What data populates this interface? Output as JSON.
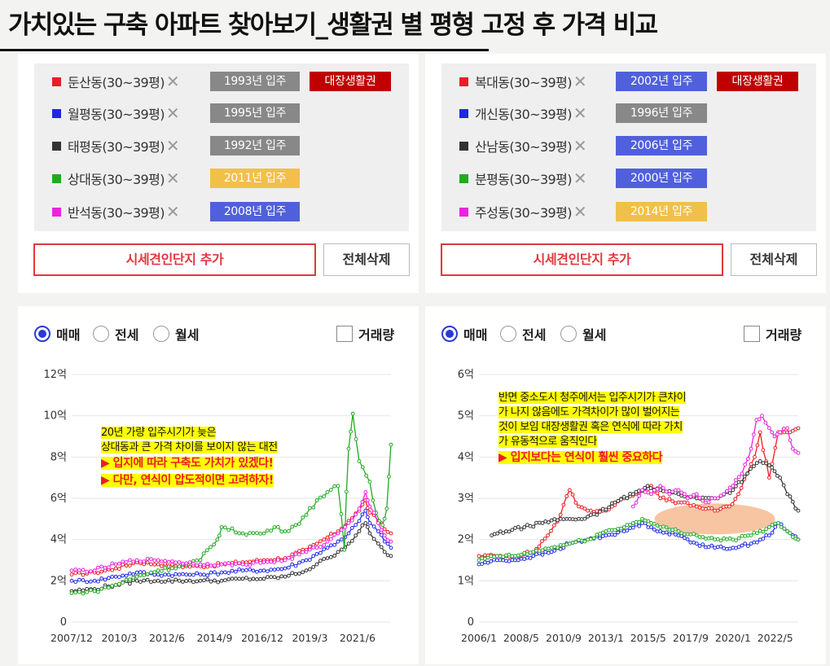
{
  "page_title": "가치있는 구축 아파트 찾아보기_생활권 별 평형 고정 후 가격 비교",
  "colors": {
    "red": "#ee1c24",
    "blue": "#1e28e6",
    "black": "#333333",
    "green": "#22aa22",
    "magenta": "#ee22dd",
    "badge_gray": "#888888",
    "badge_blue": "#5060dc",
    "badge_yellow": "#f2c04a",
    "badge_dark_red": "#c00000"
  },
  "panels": [
    {
      "legend": [
        {
          "label": "둔산동(30~39평)",
          "color": "#ee1c24",
          "badge": "1993년 입주",
          "badge_color": "#888888",
          "extra": "대장생활권"
        },
        {
          "label": "월평동(30~39평)",
          "color": "#1e28e6",
          "badge": "1995년 입주",
          "badge_color": "#888888"
        },
        {
          "label": "태평동(30~39평)",
          "color": "#333333",
          "badge": "1992년 입주",
          "badge_color": "#888888"
        },
        {
          "label": "상대동(30~39평)",
          "color": "#22aa22",
          "badge": "2011년 입주",
          "badge_color": "#f2c04a"
        },
        {
          "label": "반석동(30~39평)",
          "color": "#ee22dd",
          "badge": "2008년 입주",
          "badge_color": "#5060dc"
        }
      ],
      "add_button": "시세견인단지 추가",
      "delete_button": "전체삭제",
      "radios": [
        "매매",
        "전세",
        "월세"
      ],
      "checkbox": "거래량",
      "annotation": {
        "lines": [
          "20년 가량 입주시기가 늦은",
          "상대동과 큰 가격 차이를 보이지 않는 대전"
        ],
        "red_lines": [
          "▶ 입지에 따라 구축도 가치가 있겠다!",
          "▶ 다만, 연식이 압도적이면 고려하자!"
        ]
      }
    },
    {
      "legend": [
        {
          "label": "복대동(30~39평)",
          "color": "#ee1c24",
          "badge": "2002년 입주",
          "badge_color": "#5060dc",
          "extra": "대장생활권"
        },
        {
          "label": "개신동(30~39평)",
          "color": "#1e28e6",
          "badge": "1996년 입주",
          "badge_color": "#888888"
        },
        {
          "label": "산남동(30~39평)",
          "color": "#333333",
          "badge": "2006년 입주",
          "badge_color": "#5060dc"
        },
        {
          "label": "분평동(30~39평)",
          "color": "#22aa22",
          "badge": "2000년 입주",
          "badge_color": "#5060dc"
        },
        {
          "label": "주성동(30~39평)",
          "color": "#ee22dd",
          "badge": "2014년 입주",
          "badge_color": "#f2c04a"
        }
      ],
      "add_button": "시세견인단지 추가",
      "delete_button": "전체삭제",
      "radios": [
        "매매",
        "전세",
        "월세"
      ],
      "checkbox": "거래량",
      "annotation": {
        "lines": [
          "반면 중소도시 청주에서는 입주시기가 큰차이",
          "가 나지 않음에도 가격차이가 많이 벌어지는",
          "것이 보임 대장생활권 혹은 연식에 따라 가치",
          "가 유동적으로 움직인다"
        ],
        "red_lines": [
          "▶ 입지보다는 연식이 훨씬 중요하다"
        ]
      }
    }
  ],
  "chart_data": [
    {
      "type": "line",
      "x_range": [
        2007.92,
        2023.0
      ],
      "x_ticks": [
        {
          "x": 2007.92,
          "label": "2007/12"
        },
        {
          "x": 2010.17,
          "label": "2010/3"
        },
        {
          "x": 2012.42,
          "label": "2012/6"
        },
        {
          "x": 2014.67,
          "label": "2014/9"
        },
        {
          "x": 2016.92,
          "label": "2016/12"
        },
        {
          "x": 2019.17,
          "label": "2019/3"
        },
        {
          "x": 2021.42,
          "label": "2021/6"
        }
      ],
      "y_range": [
        0,
        12
      ],
      "y_ticks": [
        {
          "v": 0,
          "label": "0"
        },
        {
          "v": 2,
          "label": "2억"
        },
        {
          "v": 4,
          "label": "4억"
        },
        {
          "v": 6,
          "label": "6억"
        },
        {
          "v": 8,
          "label": "8억"
        },
        {
          "v": 10,
          "label": "10억"
        },
        {
          "v": 12,
          "label": "12억"
        }
      ],
      "series": [
        {
          "name": "둔산동(30~39평)",
          "color": "#ee1c24",
          "x": [
            2007.92,
            2009,
            2010,
            2011,
            2012,
            2013,
            2014,
            2015,
            2016,
            2017,
            2018,
            2019,
            2019.5,
            2020,
            2020.5,
            2021,
            2021.5,
            2021.8,
            2022,
            2022.4,
            2022.7,
            2023.0
          ],
          "y": [
            2.3,
            2.4,
            2.6,
            2.9,
            2.8,
            2.7,
            2.7,
            2.8,
            2.9,
            3.0,
            3.1,
            3.5,
            3.8,
            4.1,
            4.4,
            4.9,
            5.4,
            5.9,
            5.3,
            4.9,
            4.5,
            4.3
          ]
        },
        {
          "name": "월평동(30~39평)",
          "color": "#1e28e6",
          "x": [
            2007.92,
            2009,
            2010,
            2011,
            2012,
            2013,
            2014,
            2015,
            2016,
            2017,
            2018,
            2019,
            2019.5,
            2020,
            2020.5,
            2021,
            2021.5,
            2021.8,
            2022,
            2022.4,
            2022.7,
            2023.0
          ],
          "y": [
            2.0,
            2.0,
            2.2,
            2.4,
            2.3,
            2.3,
            2.3,
            2.4,
            2.5,
            2.5,
            2.6,
            3.0,
            3.3,
            3.6,
            3.9,
            4.3,
            4.9,
            5.4,
            4.8,
            4.4,
            3.9,
            3.6
          ]
        },
        {
          "name": "태평동(30~39평)",
          "color": "#333333",
          "x": [
            2007.92,
            2009,
            2010,
            2011,
            2012,
            2013,
            2014,
            2015,
            2016,
            2017,
            2018,
            2019,
            2019.5,
            2020,
            2020.5,
            2021,
            2021.5,
            2021.8,
            2022,
            2022.4,
            2022.7,
            2023.0
          ],
          "y": [
            1.5,
            1.6,
            1.8,
            2.0,
            2.0,
            2.0,
            2.0,
            2.0,
            2.1,
            2.1,
            2.2,
            2.5,
            2.8,
            3.1,
            3.4,
            3.8,
            4.4,
            4.8,
            4.3,
            3.8,
            3.4,
            3.2
          ]
        },
        {
          "name": "상대동(30~39평)",
          "color": "#22aa22",
          "x": [
            2007.92,
            2009,
            2010,
            2011,
            2012,
            2013,
            2014,
            2014.8,
            2015,
            2016,
            2017,
            2017.5,
            2018,
            2018.5,
            2019,
            2019.5,
            2020,
            2020.5,
            2020.8,
            2021,
            2021.2,
            2021.5,
            2022,
            2022.3,
            2022.6,
            2022.8,
            2023.0
          ],
          "y": [
            1.4,
            1.5,
            1.8,
            2.2,
            2.5,
            2.7,
            3.0,
            4.0,
            4.6,
            4.3,
            4.3,
            4.6,
            4.4,
            4.7,
            5.2,
            5.9,
            6.3,
            6.6,
            3.5,
            8.4,
            10.1,
            7.8,
            6.8,
            5.3,
            4.7,
            5.5,
            8.6
          ]
        },
        {
          "name": "반석동(30~39평)",
          "color": "#ee22dd",
          "x": [
            2007.92,
            2009,
            2010,
            2011,
            2012,
            2013,
            2014,
            2015,
            2016,
            2017,
            2018,
            2019,
            2019.5,
            2020,
            2020.5,
            2021,
            2021.5,
            2021.8,
            2022,
            2022.4,
            2022.7,
            2023.0
          ],
          "y": [
            2.5,
            2.5,
            2.8,
            3.0,
            3.0,
            2.9,
            2.8,
            2.8,
            2.8,
            2.9,
            3.0,
            3.4,
            3.6,
            3.9,
            4.3,
            4.8,
            5.5,
            6.3,
            5.6,
            4.8,
            4.2,
            3.9
          ]
        }
      ]
    },
    {
      "type": "line",
      "x_range": [
        2006.0,
        2023.6
      ],
      "x_ticks": [
        {
          "x": 2006.0,
          "label": "2006/1"
        },
        {
          "x": 2008.33,
          "label": "2008/5"
        },
        {
          "x": 2010.67,
          "label": "2010/9"
        },
        {
          "x": 2013.0,
          "label": "2013/1"
        },
        {
          "x": 2015.33,
          "label": "2015/5"
        },
        {
          "x": 2017.67,
          "label": "2017/9"
        },
        {
          "x": 2020.0,
          "label": "2020/1"
        },
        {
          "x": 2022.33,
          "label": "2022/5"
        }
      ],
      "y_range": [
        0,
        6
      ],
      "y_ticks": [
        {
          "v": 0,
          "label": "0"
        },
        {
          "v": 1,
          "label": "1억"
        },
        {
          "v": 2,
          "label": "2억"
        },
        {
          "v": 3,
          "label": "3억"
        },
        {
          "v": 4,
          "label": "4억"
        },
        {
          "v": 5,
          "label": "5억"
        },
        {
          "v": 6,
          "label": "6억"
        }
      ],
      "series": [
        {
          "name": "복대동(30~39평)",
          "color": "#ee1c24",
          "x": [
            2006,
            2007,
            2008,
            2009,
            2009.8,
            2010.5,
            2011,
            2011.5,
            2012,
            2013,
            2014,
            2015,
            2015.5,
            2016,
            2017,
            2018,
            2019,
            2019.8,
            2020.3,
            2020.8,
            2021.2,
            2021.5,
            2022,
            2022.5,
            2023,
            2023.6
          ],
          "y": [
            1.6,
            1.6,
            1.6,
            1.7,
            2.1,
            2.6,
            3.2,
            2.8,
            2.7,
            2.7,
            3.0,
            3.2,
            3.3,
            3.0,
            2.9,
            2.8,
            2.7,
            2.8,
            3.1,
            3.6,
            4.0,
            4.6,
            3.5,
            4.6,
            4.6,
            4.7
          ]
        },
        {
          "name": "개신동(30~39평)",
          "color": "#1e28e6",
          "x": [
            2006,
            2007,
            2008,
            2009,
            2010,
            2011,
            2012,
            2013,
            2014,
            2015,
            2015.5,
            2016,
            2017,
            2018,
            2019,
            2020,
            2021,
            2022,
            2022.5,
            2023,
            2023.6
          ],
          "y": [
            1.4,
            1.5,
            1.5,
            1.6,
            1.7,
            1.9,
            2.0,
            2.1,
            2.2,
            2.4,
            2.3,
            2.2,
            2.1,
            1.9,
            1.8,
            1.8,
            1.9,
            2.1,
            2.4,
            2.2,
            2.0
          ]
        },
        {
          "name": "산남동(30~39평)",
          "color": "#333333",
          "x": [
            2006.7,
            2007.5,
            2008.5,
            2009.5,
            2010.5,
            2011.5,
            2012.5,
            2013.5,
            2014.5,
            2015.3,
            2016,
            2017,
            2018,
            2019,
            2020,
            2020.8,
            2021.5,
            2022,
            2022.6,
            2023,
            2023.6
          ],
          "y": [
            2.1,
            2.2,
            2.3,
            2.4,
            2.5,
            2.5,
            2.6,
            2.9,
            3.1,
            3.3,
            3.2,
            3.1,
            3.0,
            3.0,
            3.2,
            3.6,
            3.9,
            3.8,
            3.5,
            3.1,
            2.7
          ]
        },
        {
          "name": "분평동(30~39평)",
          "color": "#22aa22",
          "x": [
            2006,
            2007,
            2008,
            2009,
            2010,
            2011,
            2012,
            2013,
            2014,
            2015,
            2015.5,
            2016,
            2017,
            2018,
            2019,
            2020,
            2021,
            2022,
            2022.5,
            2023,
            2023.6
          ],
          "y": [
            1.5,
            1.6,
            1.6,
            1.7,
            1.8,
            1.9,
            2.0,
            2.2,
            2.3,
            2.5,
            2.4,
            2.3,
            2.2,
            2.1,
            2.0,
            2.0,
            2.1,
            2.3,
            2.4,
            2.2,
            2.0
          ]
        },
        {
          "name": "주성동(30~39평)",
          "color": "#ee22dd",
          "x": [
            2014.5,
            2015,
            2015.5,
            2016,
            2016.5,
            2017,
            2017.5,
            2018,
            2018.5,
            2019,
            2019.5,
            2020,
            2020.5,
            2021,
            2021.3,
            2021.6,
            2022,
            2022.3,
            2022.6,
            2023,
            2023.3,
            2023.6
          ],
          "y": [
            2.8,
            3.2,
            3.1,
            3.3,
            3.1,
            3.2,
            3.0,
            3.1,
            2.9,
            3.0,
            3.1,
            3.3,
            3.6,
            4.2,
            4.9,
            5.0,
            4.7,
            4.5,
            4.6,
            4.7,
            4.2,
            4.1
          ]
        }
      ]
    }
  ]
}
